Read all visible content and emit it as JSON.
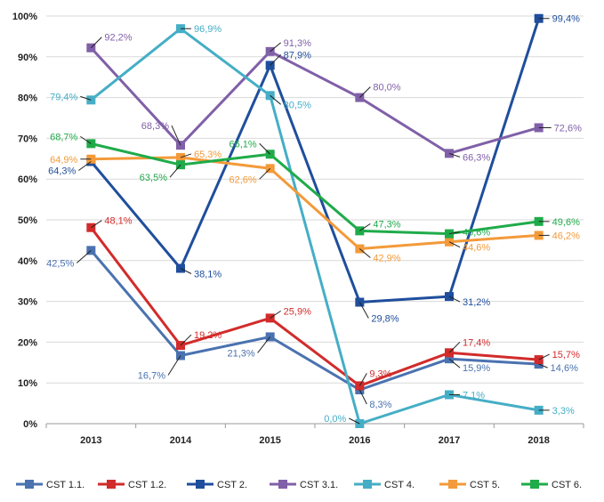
{
  "chart_data": {
    "type": "line",
    "title": "",
    "xlabel": "",
    "ylabel": "",
    "categories": [
      "2013",
      "2014",
      "2015",
      "2016",
      "2017",
      "2018"
    ],
    "ylim": [
      0,
      100
    ],
    "yticks": [
      "0%",
      "10%",
      "20%",
      "30%",
      "40%",
      "50%",
      "60%",
      "70%",
      "80%",
      "90%",
      "100%"
    ],
    "grid": "horizontal",
    "legend_position": "bottom",
    "series": [
      {
        "name": "CST 1.1.",
        "color": "#4a72b0",
        "values": [
          42.5,
          16.7,
          21.3,
          8.3,
          15.9,
          14.6
        ],
        "labels": [
          "42,5%",
          "16,7%",
          "21,3%",
          "8,3%",
          "15,9%",
          "14,6%"
        ]
      },
      {
        "name": "CST 1.2.",
        "color": "#d22b2b",
        "values": [
          48.1,
          19.2,
          25.9,
          9.3,
          17.4,
          15.7
        ],
        "labels": [
          "48,1%",
          "19,2%",
          "25,9%",
          "9,3%",
          "17,4%",
          "15,7%"
        ]
      },
      {
        "name": "CST 2.",
        "color": "#1f4e9c",
        "values": [
          64.3,
          38.1,
          87.9,
          29.8,
          31.2,
          99.4
        ],
        "labels": [
          "64,3%",
          "38,1%",
          "87,9%",
          "29,8%",
          "31,2%",
          "99,4%"
        ]
      },
      {
        "name": "CST 3.1.",
        "color": "#8060a8",
        "values": [
          92.2,
          68.3,
          91.3,
          80.0,
          66.3,
          72.6
        ],
        "labels": [
          "92,2%",
          "68,3%",
          "91,3%",
          "80,0%",
          "66,3%",
          "72,6%"
        ]
      },
      {
        "name": "CST 4.",
        "color": "#45aec6",
        "values": [
          79.4,
          96.9,
          80.5,
          0.0,
          7.1,
          3.3
        ],
        "labels": [
          "79,4%",
          "96,9%",
          "80,5%",
          "0,0%",
          "7,1%",
          "3,3%"
        ]
      },
      {
        "name": "CST 5.",
        "color": "#f39a3a",
        "values": [
          64.9,
          65.3,
          62.6,
          42.9,
          44.6,
          46.2
        ],
        "labels": [
          "64,9%",
          "65,3%",
          "62,6%",
          "42,9%",
          "44,6%",
          "46,2%"
        ]
      },
      {
        "name": "CST 6.",
        "color": "#1fab4a",
        "values": [
          68.7,
          63.5,
          66.1,
          47.3,
          46.6,
          49.6
        ],
        "labels": [
          "68,7%",
          "63,5%",
          "66,1%",
          "47,3%",
          "46,6%",
          "49,6%"
        ]
      }
    ]
  }
}
